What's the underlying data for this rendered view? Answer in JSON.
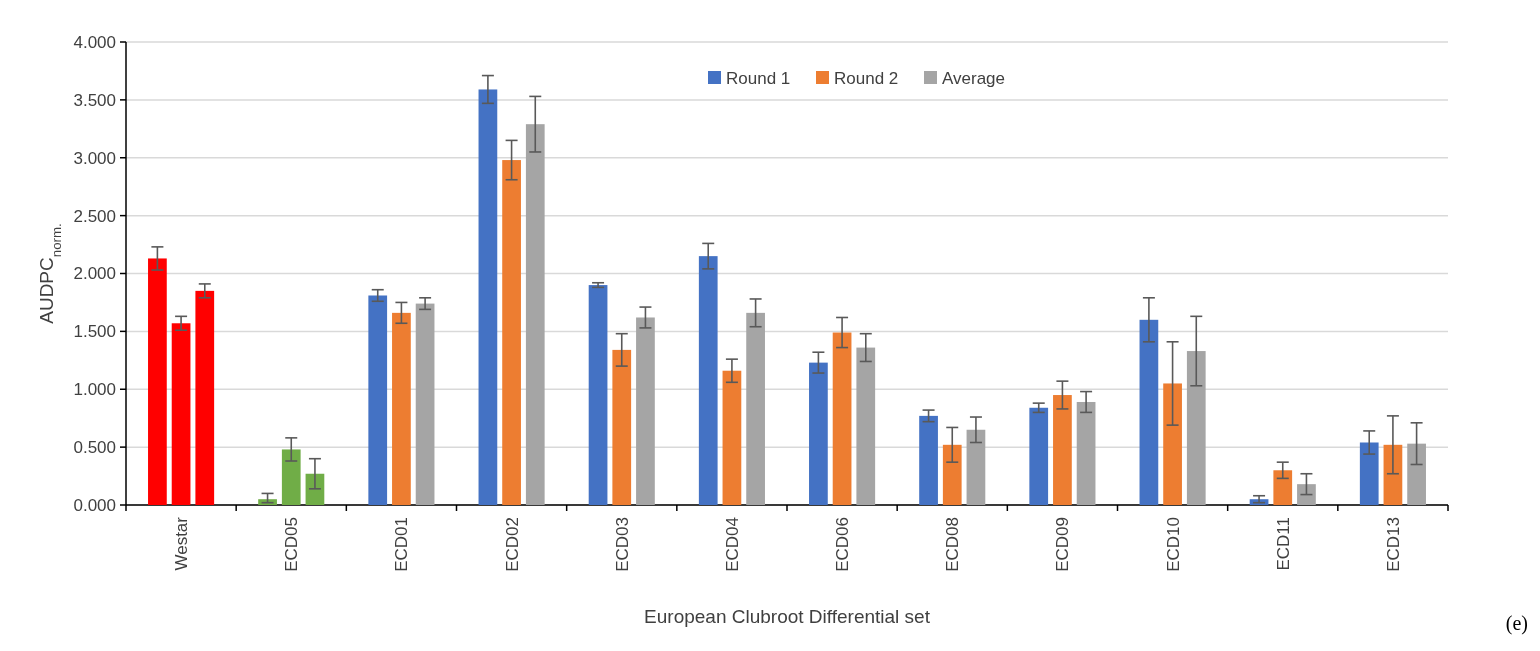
{
  "chart_data": {
    "type": "bar",
    "xlabel": "European Clubroot Differential set",
    "ylabel": "AUDPC$_{norm.}$",
    "categories": [
      "Westar",
      "ECD05",
      "ECD01",
      "ECD02",
      "ECD03",
      "ECD04",
      "ECD06",
      "ECD08",
      "ECD09",
      "ECD10",
      "ECD11",
      "ECD13"
    ],
    "series": [
      {
        "name": "Round 1",
        "color": "#4472c4",
        "colors": [
          "#ff0000",
          "#70ad47",
          "#4472c4",
          "#4472c4",
          "#4472c4",
          "#4472c4",
          "#4472c4",
          "#4472c4",
          "#4472c4",
          "#4472c4",
          "#4472c4",
          "#4472c4"
        ],
        "values": [
          2.13,
          0.05,
          1.81,
          3.59,
          1.9,
          2.15,
          1.23,
          0.77,
          0.84,
          1.6,
          0.05,
          0.54
        ],
        "errors": [
          0.1,
          [
            0.02,
            0.1
          ],
          0.05,
          0.12,
          0.02,
          0.11,
          0.09,
          0.05,
          0.04,
          0.19,
          0.03,
          0.1
        ]
      },
      {
        "name": "Round 2",
        "color": "#ed7d31",
        "colors": [
          "#ff0000",
          "#70ad47",
          "#ed7d31",
          "#ed7d31",
          "#ed7d31",
          "#ed7d31",
          "#ed7d31",
          "#ed7d31",
          "#ed7d31",
          "#ed7d31",
          "#ed7d31",
          "#ed7d31"
        ],
        "values": [
          1.57,
          0.48,
          1.66,
          2.98,
          1.34,
          1.16,
          1.49,
          0.52,
          0.95,
          1.05,
          0.3,
          0.52
        ],
        "errors": [
          0.06,
          0.1,
          0.09,
          0.17,
          0.14,
          0.1,
          0.13,
          0.15,
          0.12,
          0.36,
          0.07,
          0.25
        ]
      },
      {
        "name": "Average",
        "color": "#a5a5a5",
        "colors": [
          "#ff0000",
          "#70ad47",
          "#a5a5a5",
          "#a5a5a5",
          "#a5a5a5",
          "#a5a5a5",
          "#a5a5a5",
          "#a5a5a5",
          "#a5a5a5",
          "#a5a5a5",
          "#a5a5a5",
          "#a5a5a5"
        ],
        "values": [
          1.85,
          0.27,
          1.74,
          3.29,
          1.62,
          1.66,
          1.36,
          0.65,
          0.89,
          1.33,
          0.18,
          0.53
        ],
        "errors": [
          0.06,
          0.13,
          0.05,
          0.24,
          0.09,
          0.12,
          0.12,
          0.11,
          0.09,
          0.3,
          0.09,
          0.18
        ]
      }
    ],
    "ylim": [
      0,
      4
    ],
    "yticks": [
      {
        "value": 0,
        "label": "0.000"
      },
      {
        "value": 0.5,
        "label": "0.500"
      },
      {
        "value": 1,
        "label": "1.000"
      },
      {
        "value": 1.5,
        "label": "1.500"
      },
      {
        "value": 2,
        "label": "2.000"
      },
      {
        "value": 2.5,
        "label": "2.500"
      },
      {
        "value": 3,
        "label": "3.000"
      },
      {
        "value": 3.5,
        "label": "3.500"
      },
      {
        "value": 4,
        "label": "4.000"
      }
    ],
    "grid": "y",
    "legend": "top",
    "annotations": [
      "(e)"
    ]
  }
}
